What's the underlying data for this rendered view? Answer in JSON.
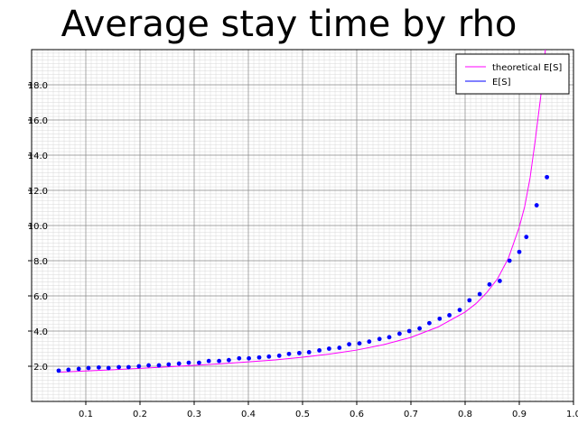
{
  "chart_data": {
    "type": "scatter",
    "title": "Average stay time by rho",
    "xlabel": "",
    "ylabel": "",
    "xlim": [
      0.0,
      1.0
    ],
    "ylim": [
      0.0,
      20.0
    ],
    "x_ticks": [
      "0.1",
      "0.2",
      "0.3",
      "0.4",
      "0.5",
      "0.6",
      "0.7",
      "0.8",
      "0.9",
      "1.0"
    ],
    "y_ticks": [
      "2.0",
      "4.0",
      "6.0",
      "8.0",
      "10.0",
      "12.0",
      "14.0",
      "16.0",
      "18.0"
    ],
    "grid": true,
    "legend_position": "top-right",
    "series": [
      {
        "name": "theoretical E[S]",
        "kind": "line",
        "color": "#ff00ff",
        "x": [
          0.05,
          0.1,
          0.15,
          0.2,
          0.25,
          0.3,
          0.35,
          0.4,
          0.45,
          0.5,
          0.55,
          0.6,
          0.65,
          0.7,
          0.75,
          0.8,
          0.82,
          0.84,
          0.86,
          0.88,
          0.9,
          0.91,
          0.92,
          0.93,
          0.94,
          0.95,
          0.955
        ],
        "y": [
          1.67,
          1.73,
          1.8,
          1.88,
          1.96,
          2.05,
          2.14,
          2.25,
          2.36,
          2.51,
          2.69,
          2.92,
          3.23,
          3.64,
          4.23,
          5.08,
          5.56,
          6.19,
          6.98,
          8.15,
          9.92,
          11.08,
          12.73,
          14.98,
          17.46,
          20.6,
          22.0
        ]
      },
      {
        "name": "E[S]",
        "kind": "scatter",
        "color": "#0000ff",
        "x": [
          0.05,
          0.068,
          0.087,
          0.105,
          0.124,
          0.142,
          0.161,
          0.179,
          0.198,
          0.216,
          0.235,
          0.253,
          0.272,
          0.29,
          0.309,
          0.327,
          0.346,
          0.364,
          0.383,
          0.401,
          0.42,
          0.438,
          0.457,
          0.475,
          0.494,
          0.512,
          0.531,
          0.549,
          0.568,
          0.586,
          0.605,
          0.623,
          0.642,
          0.66,
          0.679,
          0.697,
          0.716,
          0.734,
          0.753,
          0.771,
          0.79,
          0.808,
          0.827,
          0.845,
          0.864,
          0.882,
          0.9,
          0.913,
          0.932,
          0.951
        ],
        "y": [
          1.75,
          1.8,
          1.85,
          1.9,
          1.93,
          1.9,
          1.95,
          1.95,
          2.0,
          2.05,
          2.05,
          2.1,
          2.15,
          2.2,
          2.2,
          2.3,
          2.3,
          2.35,
          2.45,
          2.45,
          2.5,
          2.55,
          2.6,
          2.7,
          2.75,
          2.8,
          2.9,
          3.0,
          3.05,
          3.25,
          3.3,
          3.4,
          3.55,
          3.65,
          3.85,
          4.0,
          4.15,
          4.45,
          4.7,
          4.9,
          5.2,
          5.75,
          6.1,
          6.65,
          6.85,
          8.0,
          8.5,
          9.35,
          11.15,
          12.75
        ]
      }
    ]
  }
}
